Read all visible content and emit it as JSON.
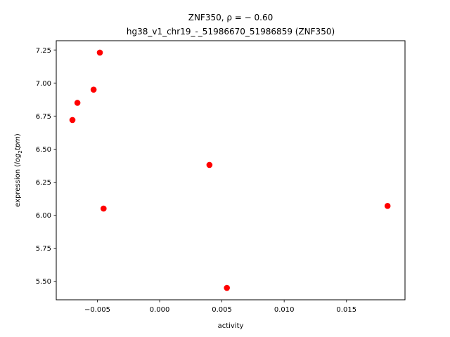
{
  "chart_data": {
    "type": "scatter",
    "title_line1": "ZNF350, ρ = − 0.60",
    "title_line2": "hg38_v1_chr19_-_51986670_51986859 (ZNF350)",
    "xlabel": "activity",
    "ylabel_prefix": "expression (",
    "ylabel_math": "log",
    "ylabel_sub": "2",
    "ylabel_math2": "tpm",
    "ylabel_suffix": ")",
    "xlim": [
      -0.0083,
      0.0197
    ],
    "ylim": [
      5.36,
      7.32
    ],
    "xticks": [
      -0.005,
      0.0,
      0.005,
      0.01,
      0.015
    ],
    "xtick_labels": [
      "−0.005",
      "0.000",
      "0.005",
      "0.010",
      "0.015"
    ],
    "yticks": [
      5.5,
      5.75,
      6.0,
      6.25,
      6.5,
      6.75,
      7.0,
      7.25
    ],
    "ytick_labels": [
      "5.50",
      "5.75",
      "6.00",
      "6.25",
      "6.50",
      "6.75",
      "7.00",
      "7.25"
    ],
    "grid": false,
    "marker_color": "#ff0000",
    "points": [
      {
        "x": -0.007,
        "y": 6.72
      },
      {
        "x": -0.0066,
        "y": 6.85
      },
      {
        "x": -0.0053,
        "y": 6.95
      },
      {
        "x": -0.0048,
        "y": 7.23
      },
      {
        "x": -0.0045,
        "y": 6.05
      },
      {
        "x": 0.004,
        "y": 6.38
      },
      {
        "x": 0.0054,
        "y": 5.45
      },
      {
        "x": 0.0183,
        "y": 6.07
      }
    ]
  }
}
